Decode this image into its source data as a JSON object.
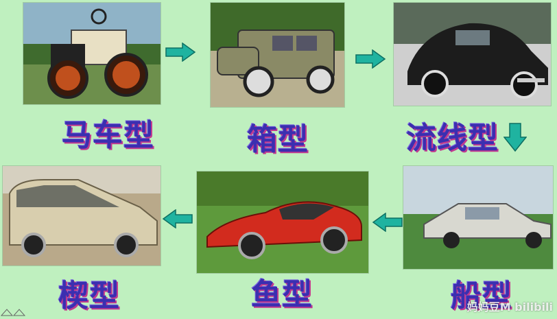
{
  "stages": [
    {
      "label": "马车型"
    },
    {
      "label": "箱型"
    },
    {
      "label": "流线型"
    },
    {
      "label": "船型"
    },
    {
      "label": "鱼型"
    },
    {
      "label": "楔型"
    }
  ],
  "watermark": "妈妈豆M bilibili",
  "colors": {
    "background": "#bff0bf",
    "label_text": "#3b2fb0",
    "label_shadow": "#c23a8f",
    "arrow": "#1fb3a0"
  }
}
